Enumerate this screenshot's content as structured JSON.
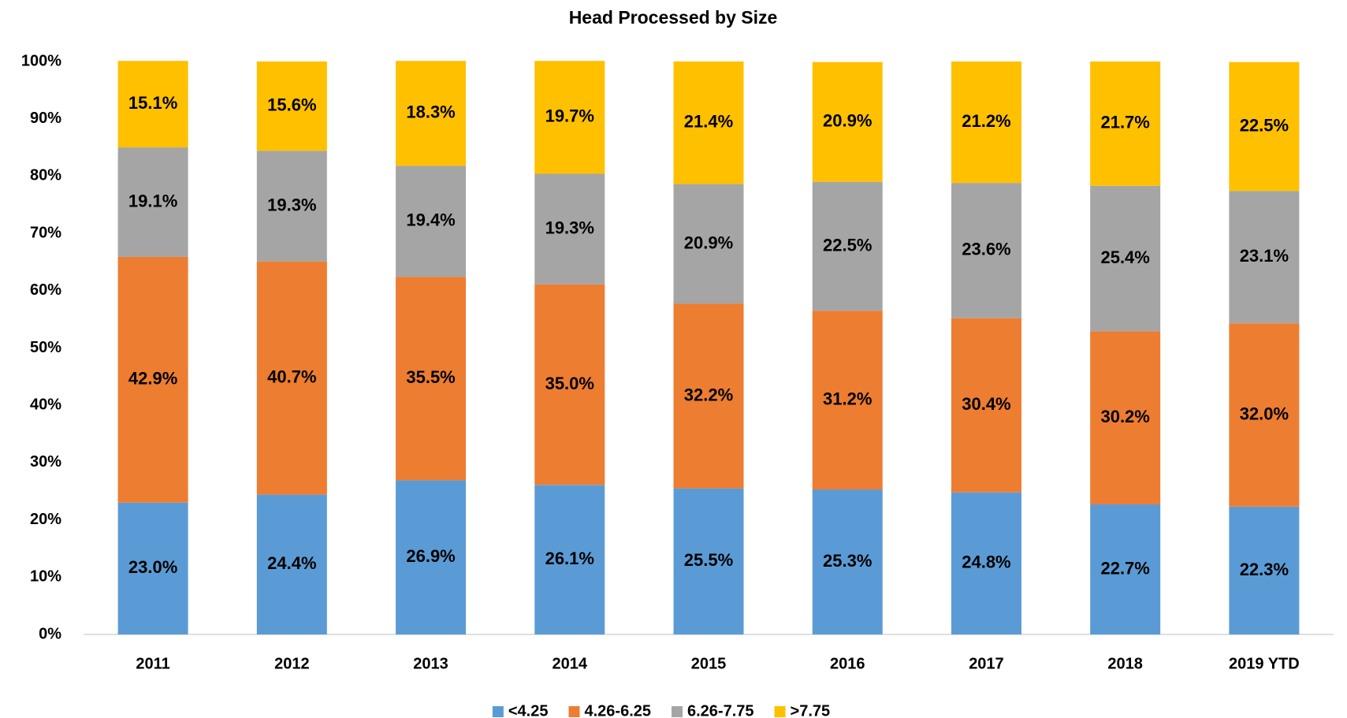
{
  "chart_data": {
    "type": "stacked_bar",
    "title": "Head Processed by Size",
    "categories": [
      "2011",
      "2012",
      "2013",
      "2014",
      "2015",
      "2016",
      "2017",
      "2018",
      "2019 YTD"
    ],
    "series": [
      {
        "name": "<4.25",
        "color": "#5b9bd5",
        "values": [
          23.0,
          24.4,
          26.9,
          26.1,
          25.5,
          25.3,
          24.8,
          22.7,
          22.3
        ],
        "value_labels": [
          "23.0%",
          "24.4%",
          "26.9%",
          "26.1%",
          "25.5%",
          "25.3%",
          "24.8%",
          "22.7%",
          "22.3%"
        ]
      },
      {
        "name": "4.26-6.25",
        "color": "#ed7d31",
        "values": [
          42.9,
          40.7,
          35.5,
          35.0,
          32.2,
          31.2,
          30.4,
          30.2,
          32.0
        ],
        "value_labels": [
          "42.9%",
          "40.7%",
          "35.5%",
          "35.0%",
          "32.2%",
          "31.2%",
          "30.4%",
          "30.2%",
          "32.0%"
        ]
      },
      {
        "name": "6.26-7.75",
        "color": "#a5a5a5",
        "values": [
          19.1,
          19.3,
          19.4,
          19.3,
          20.9,
          22.5,
          23.6,
          25.4,
          23.1
        ],
        "value_labels": [
          "19.1%",
          "19.3%",
          "19.4%",
          "19.3%",
          "20.9%",
          "22.5%",
          "23.6%",
          "25.4%",
          "23.1%"
        ]
      },
      {
        "name": ">7.75",
        "color": "#ffc000",
        "values": [
          15.1,
          15.6,
          18.3,
          19.7,
          21.4,
          20.9,
          21.2,
          21.7,
          22.5
        ],
        "value_labels": [
          "15.1%",
          "15.6%",
          "18.3%",
          "19.7%",
          "21.4%",
          "20.9%",
          "21.2%",
          "21.7%",
          "22.5%"
        ]
      }
    ],
    "ylim": [
      0,
      100
    ],
    "yticks": [
      {
        "value": 0,
        "label": "0%"
      },
      {
        "value": 10,
        "label": "10%"
      },
      {
        "value": 20,
        "label": "20%"
      },
      {
        "value": 30,
        "label": "30%"
      },
      {
        "value": 40,
        "label": "40%"
      },
      {
        "value": 50,
        "label": "50%"
      },
      {
        "value": 60,
        "label": "60%"
      },
      {
        "value": 70,
        "label": "70%"
      },
      {
        "value": 80,
        "label": "80%"
      },
      {
        "value": 90,
        "label": "90%"
      },
      {
        "value": 100,
        "label": "100%"
      }
    ],
    "grid": false
  }
}
